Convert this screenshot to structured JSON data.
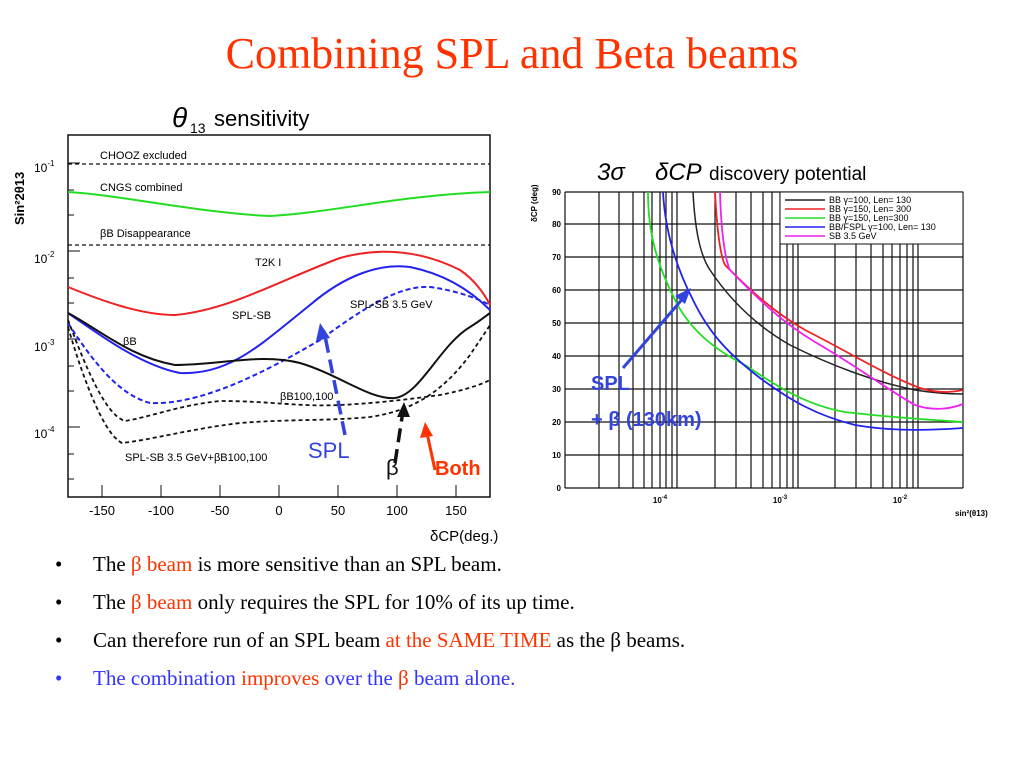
{
  "slide_title": "Combining SPL and Beta beams",
  "left_plot": {
    "title_symbol": "θ",
    "title_sub": "13",
    "title_text": "sensitivity",
    "ylabel": "Sin²2θ13",
    "xlabel": "δCP(deg.)",
    "x_ticks": [
      "-150",
      "-100",
      "-50",
      "0",
      "50",
      "100",
      "150"
    ],
    "y_ticks": [
      "10-1",
      "10-2",
      "10-3",
      "10-4"
    ],
    "reference_lines": [
      "CHOOZ excluded",
      "CNGS combined",
      "βB Disappearance"
    ],
    "curve_labels": [
      "T2K I",
      "SPL-SB",
      "SPL-SB 3.5 GeV",
      "βB",
      "βB100,100",
      "SPL-SB 3.5 GeV+βB100,100"
    ],
    "annotations": {
      "spl": "SPL",
      "beta": "β",
      "both": "Both"
    },
    "colors": {
      "green": "#22dd22",
      "red": "#ee2222",
      "blue": "#2222ee",
      "black": "#111111",
      "annotation_blue": "#3344dd",
      "annotation_red": "#ff3300"
    }
  },
  "right_plot": {
    "title_sigma": "3σ",
    "title_delta": "δCP",
    "title_text": "discovery potential",
    "ylabel": "δCP (deg)",
    "xlabel": "sin²(θ13)",
    "x_ticks": [
      "10-4",
      "10-3",
      "10-2"
    ],
    "y_ticks": [
      "90",
      "80",
      "70",
      "60",
      "50",
      "40",
      "30",
      "20",
      "10",
      "0"
    ],
    "legend": [
      {
        "label": "BB γ=100, Len= 130",
        "color": "#222222"
      },
      {
        "label": "BB γ=150, Len= 300",
        "color": "#ee2222"
      },
      {
        "label": "BB γ=150, Len=300",
        "color": "#22dd22"
      },
      {
        "label": "BB/FSPL γ=100, Len= 130",
        "color": "#2222ee"
      },
      {
        "label": "SB 3.5 GeV",
        "color": "#ee22ee"
      }
    ],
    "annotation": {
      "line1": "SPL",
      "line2": "+ β (130km)"
    }
  },
  "bullets": [
    {
      "color": "black",
      "parts": [
        {
          "text": "The ",
          "style": "black"
        },
        {
          "text": "β beam",
          "style": "red"
        },
        {
          "text": " is more sensitive than an SPL beam.",
          "style": "black"
        }
      ]
    },
    {
      "color": "black",
      "parts": [
        {
          "text": "The ",
          "style": "black"
        },
        {
          "text": "β beam",
          "style": "red"
        },
        {
          "text": " only requires the SPL for 10% of its up time.",
          "style": "black"
        }
      ]
    },
    {
      "color": "black",
      "parts": [
        {
          "text": "Can therefore run of an SPL beam ",
          "style": "black"
        },
        {
          "text": "at the SAME TIME",
          "style": "red"
        },
        {
          "text": " as the β beams.",
          "style": "black"
        }
      ]
    },
    {
      "color": "blue",
      "parts": [
        {
          "text": "The combination ",
          "style": "blue"
        },
        {
          "text": "improves",
          "style": "red"
        },
        {
          "text": " over the ",
          "style": "blue"
        },
        {
          "text": "β",
          "style": "red"
        },
        {
          "text": " beam alone.",
          "style": "blue"
        }
      ]
    }
  ]
}
